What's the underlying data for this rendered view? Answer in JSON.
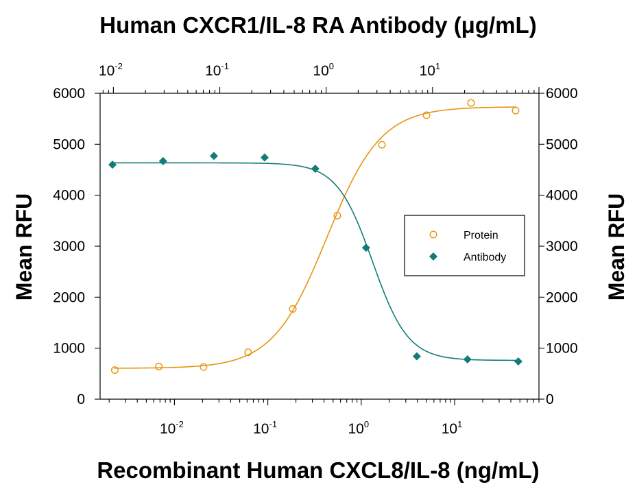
{
  "chart_data": {
    "type": "scatter",
    "title": "Human CXCR1/IL-8 RA Antibody (μg/mL)",
    "xlabel": "Recombinant Human CXCL8/IL-8 (ng/mL)",
    "ylabel": "Mean RFU",
    "ylabel_right": "Mean RFU",
    "x_scale": "log",
    "xlim": [
      0.0016,
      80
    ],
    "x_ticks": [
      "10",
      "10",
      "10",
      "10"
    ],
    "x_tick_exponents": [
      "-2",
      "-1",
      "0",
      "1"
    ],
    "x_tick_values": [
      0.01,
      0.1,
      1,
      10
    ],
    "top_axis_scale": "log",
    "top_xlim": [
      0.0075,
      100
    ],
    "top_ticks": [
      "10",
      "10",
      "10",
      "10"
    ],
    "top_tick_exponents": [
      "-2",
      "-1",
      "0",
      "1"
    ],
    "top_tick_values": [
      0.01,
      0.1,
      1,
      10
    ],
    "ylim": [
      0,
      6000
    ],
    "y_ticks": [
      "0",
      "1000",
      "2000",
      "3000",
      "4000",
      "5000",
      "6000"
    ],
    "legend_position": "right-center",
    "grid": false,
    "series": [
      {
        "name": "Protein",
        "axis": "bottom",
        "marker": "open-circle",
        "color": "#e8930e",
        "x": [
          0.0023,
          0.0068,
          0.0205,
          0.0615,
          0.185,
          0.555,
          1.667,
          5.0,
          15.0,
          45.0
        ],
        "y": [
          570,
          640,
          630,
          920,
          1770,
          3600,
          4990,
          5570,
          5810,
          5660
        ]
      },
      {
        "name": "Antibody",
        "axis": "top",
        "marker": "filled-diamond",
        "color": "#127b77",
        "x": [
          0.0098,
          0.0293,
          0.088,
          0.264,
          0.79,
          2.37,
          7.11,
          21.3,
          64.0
        ],
        "y": [
          4600,
          4670,
          4770,
          4740,
          4520,
          2970,
          840,
          780,
          740
        ]
      }
    ]
  }
}
